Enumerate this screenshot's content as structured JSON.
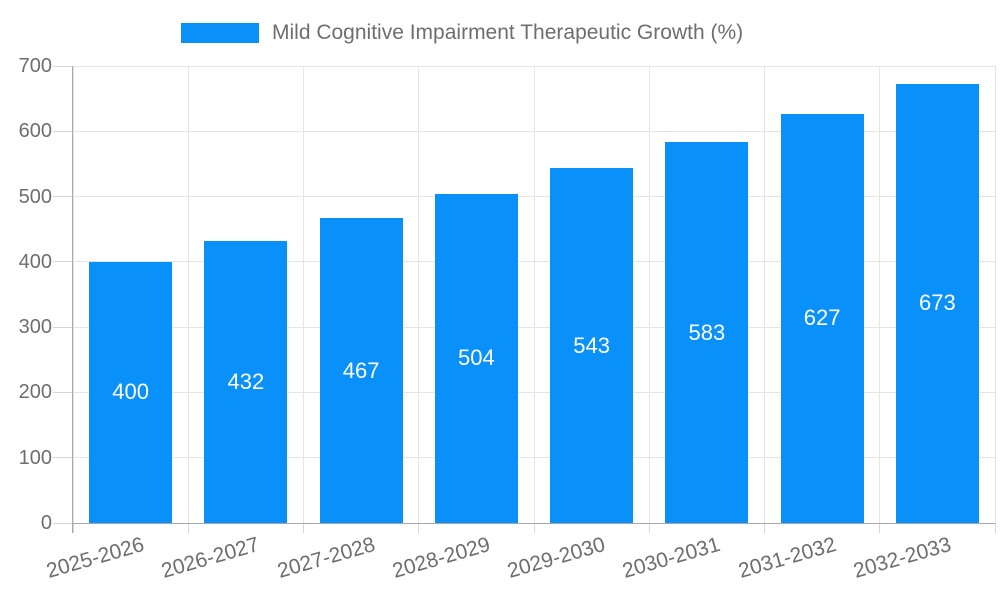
{
  "legend": {
    "label": "Mild Cognitive Impairment Therapeutic Growth (%)"
  },
  "chart_data": {
    "type": "bar",
    "title": "",
    "series_name": "Mild Cognitive Impairment Therapeutic Growth (%)",
    "categories": [
      "2025-2026",
      "2026-2027",
      "2027-2028",
      "2028-2029",
      "2029-2030",
      "2030-2031",
      "2031-2032",
      "2032-2033"
    ],
    "values": [
      400,
      432,
      467,
      504,
      543,
      583,
      627,
      673
    ],
    "xlabel": "",
    "ylabel": "",
    "ylim": [
      0,
      700
    ],
    "yticks": [
      0,
      100,
      200,
      300,
      400,
      500,
      600,
      700
    ],
    "grid": true,
    "legend_position": "top",
    "bar_label_position": "center",
    "colors": {
      "bar": "#0a90f9",
      "bar_label": "#ffffff",
      "axis_text": "#6e6e6e",
      "grid_line": "#e5e5e5",
      "tick_line": "#d6d6d6",
      "axis_line": "#a8a8a8",
      "background": "#ffffff"
    }
  }
}
